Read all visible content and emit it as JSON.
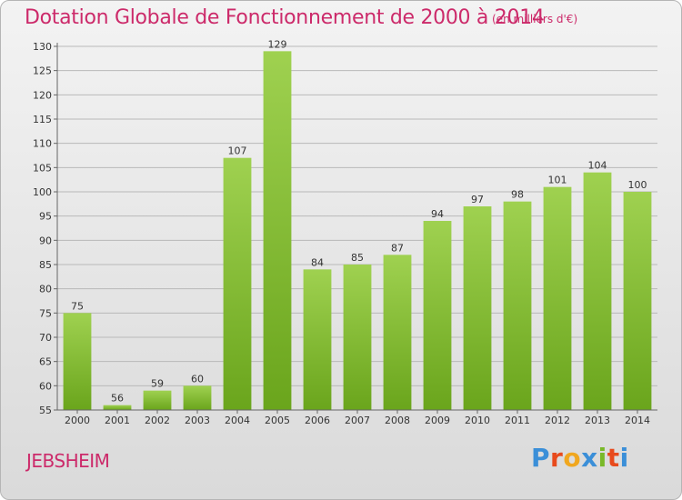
{
  "header": {
    "title": "Dotation Globale de Fonctionnement de 2000 à 2014",
    "unit": "(en milliers d'€)"
  },
  "footer": {
    "commune": "JEBSHEIM",
    "logo": "Proxiti"
  },
  "colors": {
    "title": "#cc2a6a",
    "bar_top": "#9fd150",
    "bar_bottom": "#6aa51c",
    "logo_letters": [
      "#3b8fd8",
      "#e84a1c",
      "#f0a71f",
      "#3b8fd8",
      "#79b928",
      "#e84a1c",
      "#3b8fd8"
    ]
  },
  "chart_data": {
    "type": "bar",
    "title": "Dotation Globale de Fonctionnement de 2000 à 2014",
    "subtitle": "(en milliers d'€)",
    "categories": [
      "2000",
      "2001",
      "2002",
      "2003",
      "2004",
      "2005",
      "2006",
      "2007",
      "2008",
      "2009",
      "2010",
      "2011",
      "2012",
      "2013",
      "2014"
    ],
    "values": [
      75,
      56,
      59,
      60,
      107,
      129,
      84,
      85,
      87,
      94,
      97,
      98,
      101,
      104,
      100
    ],
    "ylim": [
      55,
      130
    ],
    "yticks": [
      55,
      60,
      65,
      70,
      75,
      80,
      85,
      90,
      95,
      100,
      105,
      110,
      115,
      120,
      125,
      130
    ],
    "grid": true,
    "data_labels": true
  }
}
